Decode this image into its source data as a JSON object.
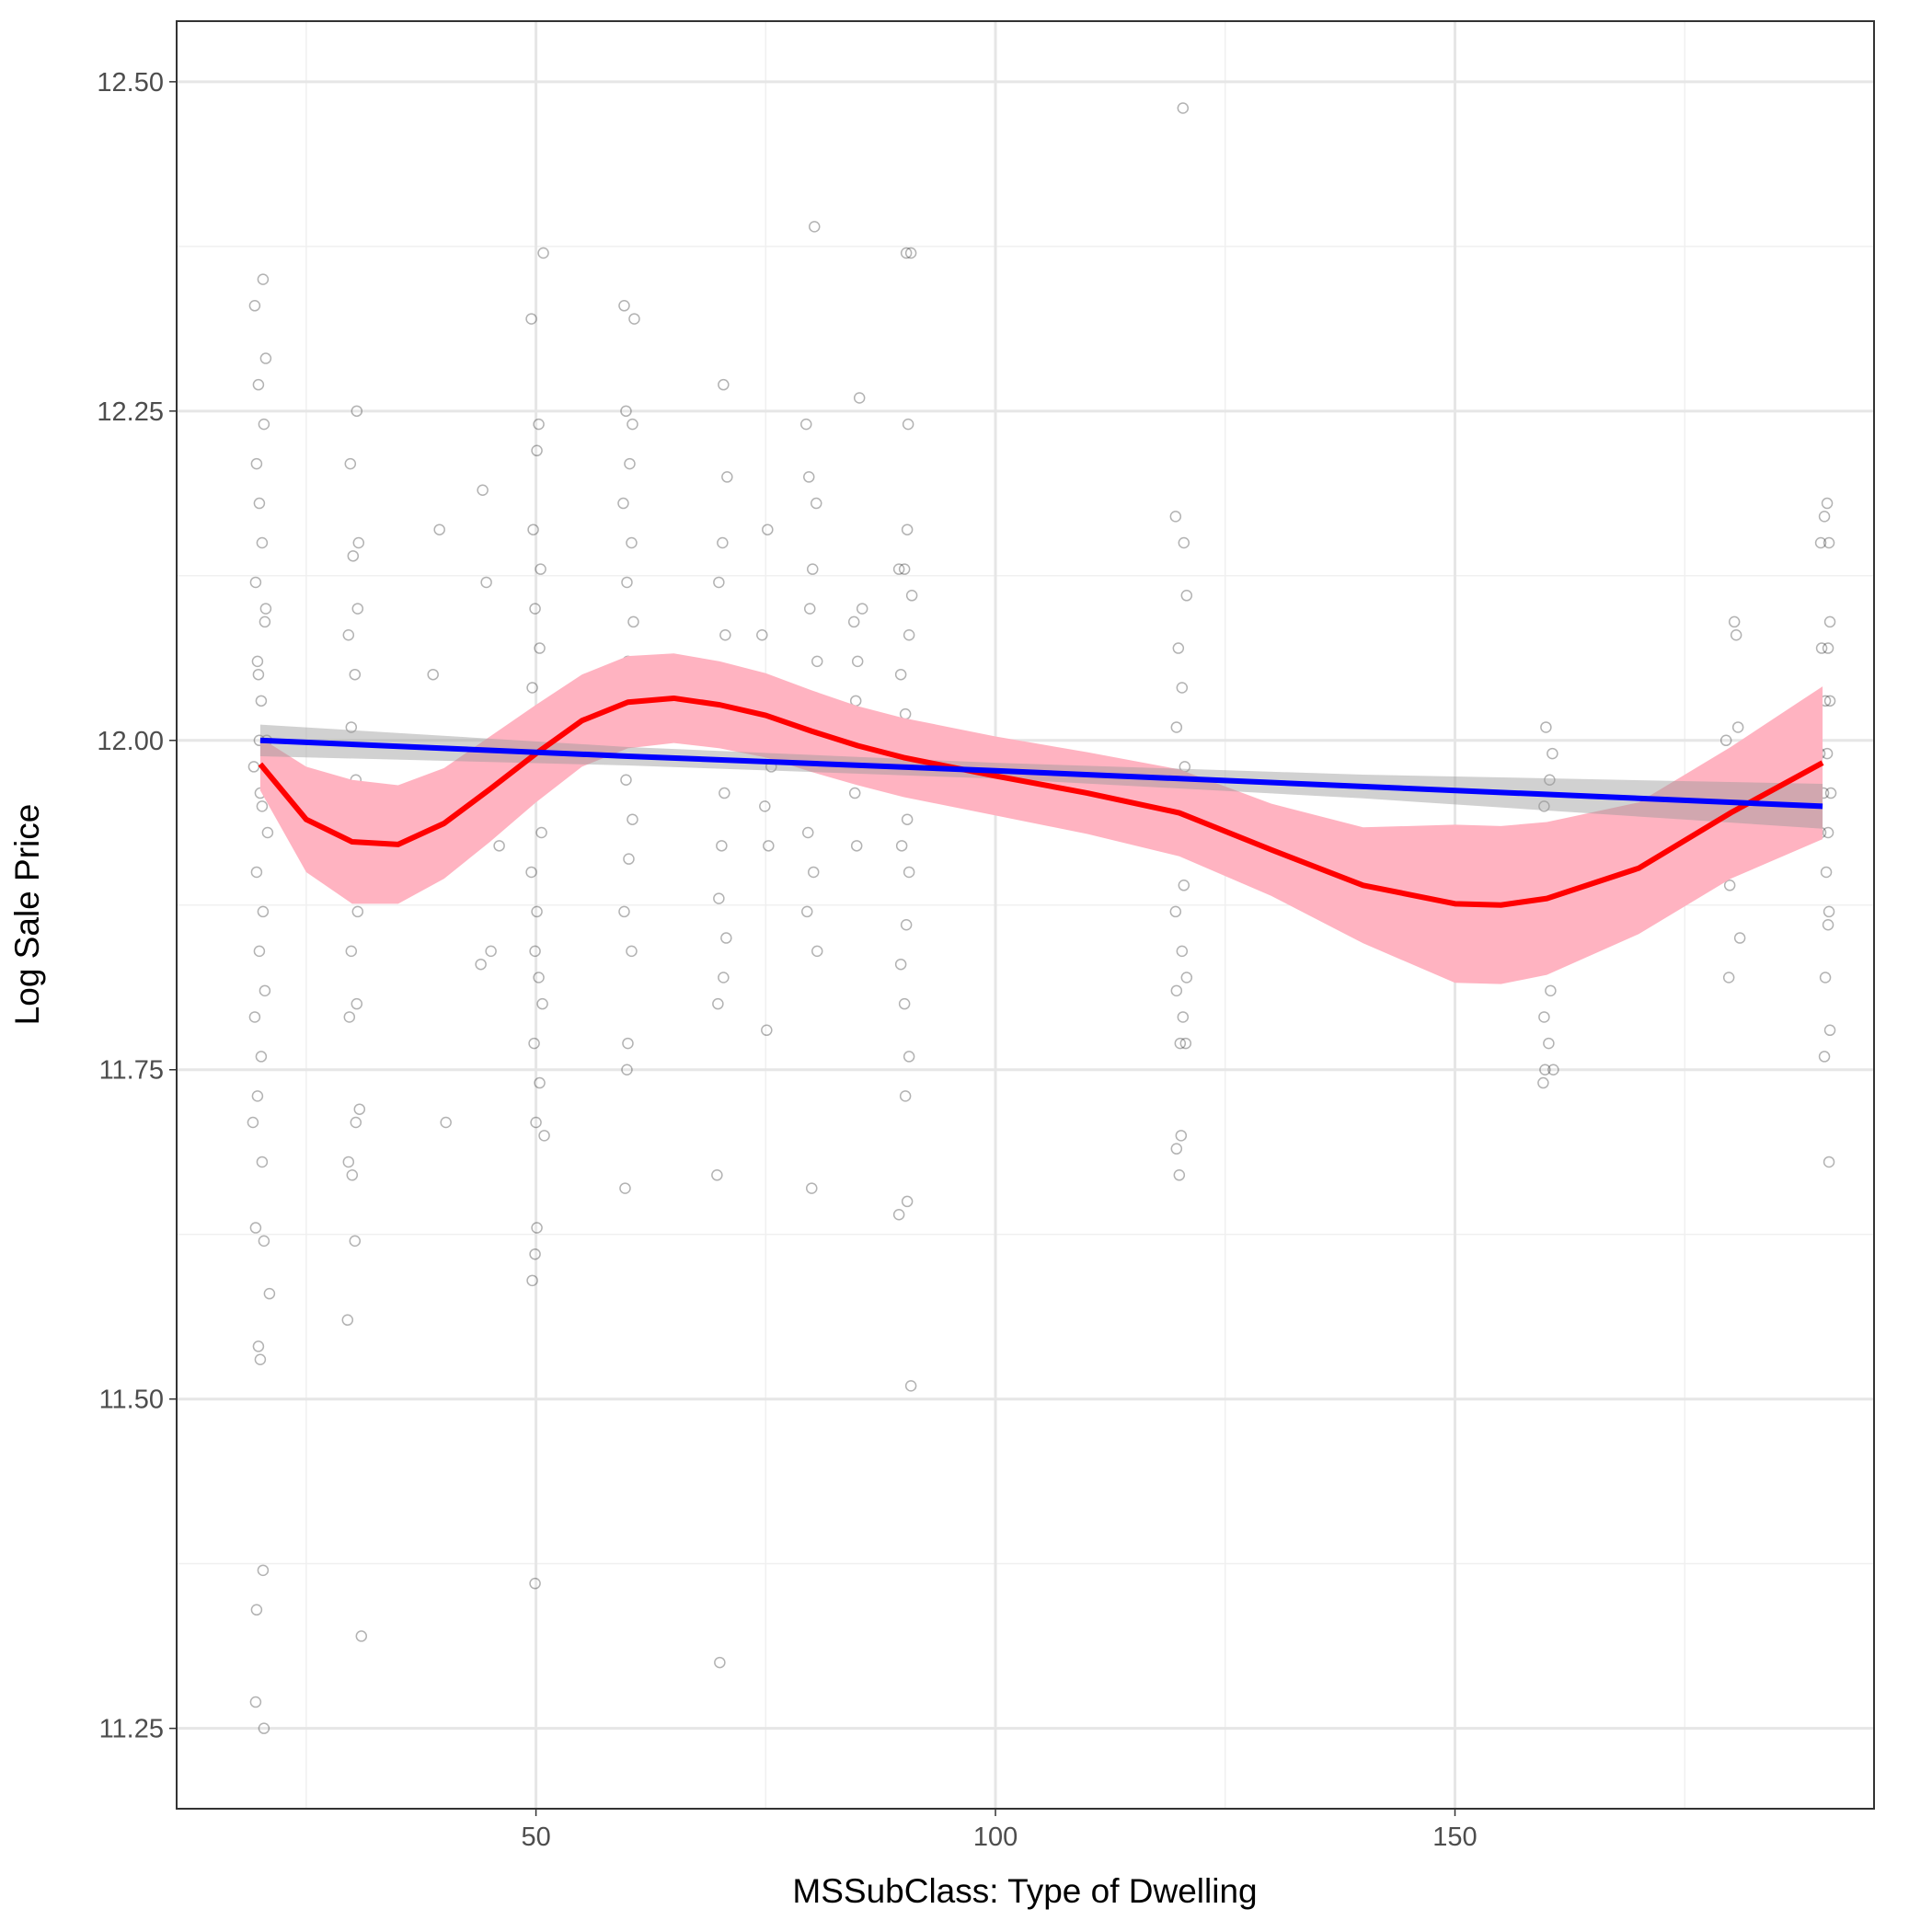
{
  "chart_data": {
    "type": "scatter",
    "xlabel": "MSSubClass: Type of Dwelling",
    "ylabel": "Log Sale Price",
    "xlim": [
      10.9,
      195.6
    ],
    "ylim": [
      11.189,
      12.546
    ],
    "xticks": [
      50,
      100,
      150
    ],
    "yticks": [
      11.25,
      {
        "value": 11.5,
        "label": "11.50"
      },
      11.75,
      {
        "value": 12,
        "label": "12.00"
      },
      12.25,
      {
        "value": 12.5,
        "label": "12.50"
      }
    ],
    "xminor": [
      25,
      75,
      125,
      175
    ],
    "yminor": [
      11.375,
      11.625,
      11.875,
      12.125,
      12.375
    ],
    "grid": true,
    "points": {
      "color": "#000000",
      "x": [
        19.4,
        20.3,
        19.8,
        20.6,
        19.6,
        20.4,
        19.9,
        20.2,
        19.5,
        20.5,
        19.7,
        20.1,
        20.7,
        19.3,
        20.0,
        20.8,
        19.6,
        20.3,
        19.9,
        20.5,
        19.4,
        20.1,
        19.7,
        19.2,
        20.2,
        19.5,
        20.4,
        21.0,
        19.8,
        20.0,
        20.3,
        19.6,
        19.5,
        20.4,
        20.6,
        19.8,
        20.2,
        19.9,
        30.5,
        29.8,
        30.7,
        30.1,
        30.6,
        29.6,
        30.3,
        29.9,
        30.4,
        29.7,
        30.2,
        30.6,
        29.9,
        30.5,
        29.7,
        30.8,
        30.4,
        29.6,
        30.0,
        30.3,
        29.5,
        31.0,
        38.8,
        39.5,
        40.2,
        44.2,
        44.6,
        45.1,
        44.0,
        45.5,
        46.0,
        49.5,
        50.8,
        50.3,
        50.1,
        49.7,
        50.5,
        49.9,
        50.4,
        49.6,
        50.2,
        49.8,
        50.6,
        49.5,
        50.1,
        49.9,
        50.3,
        50.7,
        49.8,
        50.4,
        50.0,
        50.9,
        50.1,
        49.9,
        49.6,
        49.9,
        59.6,
        60.7,
        59.8,
        60.5,
        60.2,
        59.5,
        60.4,
        59.9,
        60.6,
        60.0,
        59.7,
        60.3,
        59.8,
        60.5,
        60.1,
        59.6,
        60.4,
        60.0,
        59.9,
        59.7,
        70.4,
        70.8,
        70.3,
        69.9,
        70.6,
        70.1,
        69.8,
        70.5,
        70.2,
        69.9,
        70.7,
        70.4,
        69.8,
        69.7,
        70.0,
        74.6,
        75.2,
        75.6,
        74.9,
        75.3,
        75.1,
        79.4,
        80.3,
        79.7,
        80.5,
        80.1,
        79.8,
        80.6,
        79.9,
        80.4,
        79.6,
        80.2,
        79.5,
        80.6,
        80.0,
        85.2,
        84.6,
        85.5,
        85.0,
        84.8,
        85.4,
        84.7,
        84.9,
        90.3,
        90.8,
        90.5,
        90.4,
        89.5,
        90.1,
        90.9,
        90.6,
        89.7,
        90.2,
        90.9,
        89.6,
        90.4,
        89.8,
        90.6,
        90.3,
        89.7,
        90.1,
        90.6,
        90.2,
        89.5,
        90.4,
        90.8,
        119.6,
        120.5,
        120.8,
        119.9,
        120.3,
        119.7,
        120.6,
        120.1,
        119.8,
        120.5,
        119.6,
        120.3,
        120.8,
        119.7,
        120.4,
        120.1,
        120.7,
        120.2,
        119.7,
        120.0,
        120.4,
        159.9,
        160.6,
        160.3,
        159.7,
        160.4,
        160.0,
        159.6,
        160.5,
        160.1,
        159.8,
        160.4,
        159.7,
        160.2,
        160.7,
        159.8,
        159.6,
        179.5,
        180.4,
        180.6,
        180.8,
        179.7,
        180.5,
        179.9,
        181.0,
        179.8,
        190.5,
        190.2,
        189.8,
        190.7,
        190.8,
        189.9,
        190.6,
        190.3,
        190.8,
        189.7,
        190.5,
        190.1,
        190.9,
        189.8,
        190.6,
        190.4,
        190.7,
        190.6,
        190.3,
        190.8,
        190.2,
        190.7
      ],
      "y": [
        12.33,
        12.35,
        12.27,
        12.29,
        12.21,
        12.24,
        12.18,
        12.15,
        12.12,
        12.09,
        12.06,
        12.03,
        12.0,
        11.98,
        11.96,
        11.93,
        11.9,
        11.87,
        11.84,
        11.81,
        11.79,
        11.76,
        11.73,
        11.71,
        11.68,
        11.63,
        11.62,
        11.58,
        11.54,
        11.53,
        11.37,
        11.34,
        11.27,
        11.25,
        12.1,
        12.05,
        11.95,
        12.0,
        12.25,
        12.21,
        12.15,
        12.14,
        12.1,
        12.08,
        12.05,
        12.01,
        11.97,
        11.94,
        11.9,
        11.87,
        11.84,
        11.8,
        11.79,
        11.72,
        11.71,
        11.68,
        11.67,
        11.62,
        11.56,
        11.32,
        12.05,
        12.16,
        11.71,
        12.19,
        12.12,
        11.84,
        11.83,
        11.97,
        11.92,
        12.32,
        12.37,
        12.24,
        12.22,
        12.16,
        12.13,
        12.1,
        12.07,
        12.04,
        12.01,
        11.97,
        11.93,
        11.9,
        11.87,
        11.84,
        11.82,
        11.8,
        11.77,
        11.74,
        11.71,
        11.7,
        11.63,
        11.61,
        11.59,
        11.36,
        12.33,
        12.32,
        12.25,
        12.24,
        12.21,
        12.18,
        12.15,
        12.12,
        12.09,
        12.06,
        12.03,
        12.0,
        11.97,
        11.94,
        11.91,
        11.87,
        11.84,
        11.77,
        11.75,
        11.66,
        12.27,
        12.2,
        12.15,
        12.12,
        12.08,
        12.04,
        12.0,
        11.96,
        11.92,
        11.88,
        11.85,
        11.82,
        11.8,
        11.67,
        11.3,
        12.08,
        12.16,
        11.98,
        11.95,
        11.92,
        11.78,
        12.24,
        12.39,
        12.2,
        12.18,
        12.13,
        12.1,
        12.06,
        12.02,
        11.98,
        11.93,
        11.9,
        11.87,
        11.84,
        11.66,
        12.26,
        12.09,
        12.1,
        12.06,
        12.03,
        12.0,
        11.96,
        11.92,
        12.37,
        12.37,
        12.24,
        12.16,
        12.13,
        12.13,
        12.11,
        12.08,
        12.05,
        12.02,
        12.01,
        11.97,
        11.94,
        11.92,
        11.9,
        11.86,
        11.83,
        11.8,
        11.76,
        11.73,
        11.64,
        11.65,
        11.51,
        12.17,
        12.15,
        12.11,
        12.07,
        12.04,
        12.01,
        11.98,
        11.95,
        11.92,
        11.89,
        11.87,
        11.84,
        11.82,
        11.81,
        11.79,
        11.77,
        11.77,
        11.7,
        11.69,
        11.67,
        12.48,
        12.01,
        11.99,
        11.97,
        11.95,
        11.93,
        11.91,
        11.89,
        11.87,
        11.85,
        11.83,
        11.81,
        11.79,
        11.77,
        11.75,
        11.75,
        11.74,
        12.0,
        12.09,
        12.08,
        12.01,
        11.98,
        11.97,
        11.89,
        11.85,
        11.82,
        12.18,
        12.17,
        12.15,
        12.15,
        12.09,
        12.07,
        12.07,
        12.03,
        12.03,
        11.99,
        11.99,
        11.96,
        11.96,
        11.93,
        11.93,
        11.9,
        11.87,
        11.86,
        11.82,
        11.78,
        11.76,
        11.68
      ]
    },
    "smooth": {
      "color": "#ff0000",
      "band_color": "#ffb3c1",
      "x": [
        20,
        25,
        30,
        35,
        40,
        45,
        50,
        55,
        60,
        65,
        70,
        75,
        80,
        85,
        90,
        95,
        100,
        110,
        120,
        130,
        140,
        150,
        155,
        160,
        170,
        180,
        190
      ],
      "y": [
        11.982,
        11.94,
        11.923,
        11.921,
        11.937,
        11.963,
        11.99,
        12.015,
        12.029,
        12.032,
        12.027,
        12.019,
        12.007,
        11.996,
        11.987,
        11.98,
        11.973,
        11.96,
        11.945,
        11.917,
        11.89,
        11.876,
        11.875,
        11.88,
        11.903,
        11.945,
        11.983
      ],
      "lower": [
        11.962,
        11.9,
        11.876,
        11.876,
        11.895,
        11.923,
        11.953,
        11.98,
        11.994,
        11.998,
        11.994,
        11.987,
        11.976,
        11.966,
        11.957,
        11.95,
        11.943,
        11.929,
        11.912,
        11.882,
        11.846,
        11.816,
        11.815,
        11.822,
        11.853,
        11.895,
        11.925
      ],
      "upper": [
        12.002,
        11.98,
        11.97,
        11.966,
        11.979,
        12.003,
        12.027,
        12.05,
        12.064,
        12.066,
        12.06,
        12.051,
        12.038,
        12.026,
        12.017,
        12.01,
        12.003,
        11.991,
        11.978,
        11.952,
        11.934,
        11.936,
        11.935,
        11.938,
        11.953,
        11.995,
        12.041
      ]
    },
    "linear": {
      "color": "#0000ff",
      "band_color": "#999999",
      "x": [
        20,
        60,
        100,
        140,
        190
      ],
      "y": [
        12.0,
        11.988,
        11.977,
        11.965,
        11.95
      ],
      "lower": [
        11.988,
        11.981,
        11.971,
        11.956,
        11.933
      ],
      "upper": [
        12.012,
        11.995,
        11.983,
        11.974,
        11.967
      ]
    }
  }
}
